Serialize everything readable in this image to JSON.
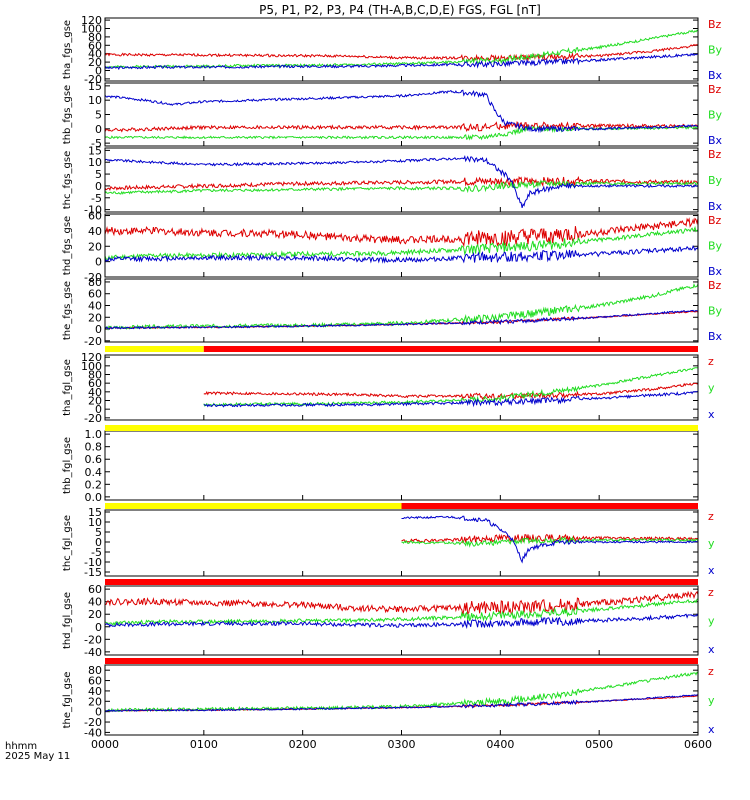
{
  "title": "P5, P1, P2, P3, P4 (TH-A,B,C,D,E) FGS, FGL [nT]",
  "time_axis": {
    "ticks": [
      "0000",
      "0100",
      "0200",
      "0300",
      "0400",
      "0500",
      "0600"
    ],
    "label_line1": "hhmm",
    "label_line2": "2025 May 11"
  },
  "colors": {
    "x": "#0000cc",
    "y": "#22dd22",
    "z": "#dd0000",
    "yellow": "#ffff00",
    "red": "#ff0000",
    "axis": "#000000"
  },
  "chart_data": [
    {
      "type": "line",
      "ylabel": "tha_fgs_gse",
      "hours": [
        0,
        6
      ],
      "yticks": [
        "120",
        "100",
        "80",
        "60",
        "40",
        "20",
        "0",
        "-20"
      ],
      "ylim": [
        -25,
        125
      ],
      "legend": [
        "Bz",
        "By",
        "Bx"
      ],
      "series": [
        {
          "name": "Bz",
          "color": "z",
          "times": [
            0,
            0.5,
            1,
            1.5,
            2,
            2.5,
            3,
            3.5,
            4,
            4.5,
            5,
            5.5,
            6
          ],
          "values": [
            38,
            37,
            37,
            36,
            35,
            34,
            30,
            30,
            30,
            32,
            35,
            45,
            60
          ],
          "noise": 3,
          "seed": 1
        },
        {
          "name": "By",
          "color": "y",
          "times": [
            0,
            0.5,
            1,
            1.5,
            2,
            2.5,
            3,
            3.5,
            4,
            4.5,
            5,
            5.5,
            6
          ],
          "values": [
            8,
            10,
            10,
            12,
            12,
            14,
            16,
            20,
            25,
            40,
            55,
            75,
            95
          ],
          "noise": 3,
          "seed": 2
        },
        {
          "name": "Bx",
          "color": "x",
          "times": [
            0,
            0.5,
            1,
            1.5,
            2,
            2.5,
            3,
            3.5,
            4,
            4.5,
            5,
            5.5,
            6
          ],
          "values": [
            6,
            8,
            8,
            9,
            10,
            10,
            12,
            14,
            16,
            20,
            25,
            32,
            38
          ],
          "noise": 3,
          "seed": 3
        }
      ]
    },
    {
      "type": "line",
      "ylabel": "thb_fgs_gse",
      "hours": [
        0,
        6
      ],
      "yticks": [
        "15",
        "10",
        "5",
        "0",
        "-5"
      ],
      "ylim": [
        -6,
        16
      ],
      "legend": [
        "Bz",
        "By",
        "Bx"
      ],
      "series": [
        {
          "name": "Bz",
          "color": "z",
          "times": [
            0,
            0.5,
            1,
            1.5,
            2,
            2.5,
            3,
            3.5,
            3.8,
            4,
            4.3,
            5,
            6
          ],
          "values": [
            -0.5,
            0,
            0.5,
            0.5,
            0.5,
            0.5,
            0.5,
            0.5,
            0.5,
            1,
            1,
            1,
            1
          ],
          "noise": 0.6,
          "seed": 4
        },
        {
          "name": "By",
          "color": "y",
          "times": [
            0,
            1,
            2,
            3,
            3.8,
            4,
            4.3,
            5,
            6
          ],
          "values": [
            -3,
            -3,
            -3,
            -3,
            -3,
            -2,
            0,
            0,
            0.5
          ],
          "noise": 0.4,
          "seed": 5
        },
        {
          "name": "Bx",
          "color": "x",
          "times": [
            0,
            0.4,
            0.7,
            1,
            2,
            3,
            3.5,
            3.85,
            3.95,
            4.05,
            4.3,
            5,
            6
          ],
          "values": [
            11.5,
            10,
            8.5,
            9.5,
            10.5,
            11.5,
            13,
            12,
            6,
            2,
            0,
            0,
            1
          ],
          "noise": 0.4,
          "seed": 6
        }
      ]
    },
    {
      "type": "line",
      "ylabel": "thc_fgs_gse",
      "hours": [
        0,
        6
      ],
      "yticks": [
        "15",
        "10",
        "5",
        "0",
        "-5",
        "-10"
      ],
      "ylim": [
        -11,
        16
      ],
      "legend": [
        "Bz",
        "By",
        "Bx"
      ],
      "series": [
        {
          "name": "Bz",
          "color": "z",
          "times": [
            0,
            1,
            2,
            3,
            3.8,
            4,
            4.5,
            5,
            6
          ],
          "values": [
            -1,
            0,
            1,
            1.5,
            2,
            2,
            2,
            2,
            1.5
          ],
          "noise": 0.8,
          "seed": 7
        },
        {
          "name": "By",
          "color": "y",
          "times": [
            0,
            1,
            2,
            3,
            3.8,
            4,
            4.5,
            5,
            6
          ],
          "values": [
            -3,
            -2,
            -1.5,
            -1,
            -1,
            0,
            1,
            1,
            1
          ],
          "noise": 0.6,
          "seed": 8
        },
        {
          "name": "Bx",
          "color": "x",
          "times": [
            0,
            0.5,
            1,
            2,
            3,
            3.5,
            3.85,
            4.1,
            4.22,
            4.3,
            4.6,
            5,
            6
          ],
          "values": [
            11,
            10,
            9,
            9.5,
            10.5,
            11.5,
            11,
            3,
            -9,
            -3,
            0,
            0,
            0
          ],
          "noise": 0.5,
          "seed": 9
        }
      ]
    },
    {
      "type": "line",
      "ylabel": "thd_fgs_gse",
      "hours": [
        0,
        6
      ],
      "yticks": [
        "60",
        "40",
        "20",
        "0",
        "-20"
      ],
      "ylim": [
        -20,
        62
      ],
      "legend": [
        "Bz",
        "By",
        "Bx"
      ],
      "series": [
        {
          "name": "Bz",
          "color": "z",
          "times": [
            0,
            0.5,
            1,
            1.5,
            2,
            2.5,
            3,
            3.5,
            4,
            4.5,
            5,
            5.5,
            6
          ],
          "values": [
            40,
            40,
            38,
            37,
            35,
            30,
            28,
            30,
            30,
            33,
            38,
            45,
            52
          ],
          "noise": 5,
          "seed": 10
        },
        {
          "name": "By",
          "color": "y",
          "times": [
            0,
            0.5,
            1,
            1.5,
            2,
            2.5,
            3,
            3.5,
            4,
            4.5,
            5,
            5.5,
            6
          ],
          "values": [
            5,
            8,
            8,
            9,
            10,
            10,
            12,
            15,
            18,
            22,
            28,
            35,
            42
          ],
          "noise": 3,
          "seed": 11
        },
        {
          "name": "Bx",
          "color": "x",
          "times": [
            0,
            0.5,
            1,
            1.5,
            2,
            2.5,
            3,
            3.5,
            4,
            4.5,
            5,
            5.5,
            6
          ],
          "values": [
            3,
            4,
            5,
            5,
            5,
            3,
            2,
            4,
            6,
            8,
            10,
            14,
            18
          ],
          "noise": 3,
          "seed": 12
        }
      ]
    },
    {
      "type": "line",
      "ylabel": "the_fgs_gse",
      "hours": [
        0,
        6
      ],
      "yticks": [
        "80",
        "60",
        "40",
        "20",
        "0",
        "-20"
      ],
      "ylim": [
        -22,
        85
      ],
      "legend": [
        "Bz",
        "By",
        "Bx"
      ],
      "series": [
        {
          "name": "Bz",
          "color": "z",
          "times": [
            0,
            1,
            2,
            3,
            4,
            5,
            6
          ],
          "values": [
            2,
            3,
            5,
            8,
            12,
            20,
            30
          ],
          "noise": 1,
          "seed": 13
        },
        {
          "name": "By",
          "color": "y",
          "times": [
            0,
            0.5,
            1,
            1.5,
            2,
            2.5,
            3,
            3.5,
            4,
            4.5,
            5,
            5.5,
            6
          ],
          "values": [
            2,
            4,
            5,
            6,
            6,
            8,
            10,
            15,
            20,
            30,
            40,
            55,
            75
          ],
          "noise": 3,
          "seed": 14
        },
        {
          "name": "Bx",
          "color": "x",
          "times": [
            0,
            1,
            2,
            3,
            4,
            5,
            6
          ],
          "values": [
            2,
            3,
            5,
            8,
            12,
            20,
            32
          ],
          "noise": 1.5,
          "seed": 15
        }
      ]
    },
    {
      "type": "line",
      "ylabel": "tha_fgl_gse",
      "hours": [
        1,
        6
      ],
      "yticks": [
        "120",
        "100",
        "80",
        "60",
        "40",
        "20",
        "0",
        "-20"
      ],
      "ylim": [
        -25,
        125
      ],
      "legend": [
        "z",
        "y",
        "x"
      ],
      "series": [
        {
          "name": "z",
          "color": "z",
          "times": [
            1,
            1.5,
            2,
            2.5,
            3,
            3.5,
            4,
            4.5,
            5,
            5.5,
            6
          ],
          "values": [
            37,
            36,
            35,
            34,
            30,
            30,
            30,
            32,
            35,
            45,
            60
          ],
          "noise": 3,
          "seed": 16
        },
        {
          "name": "y",
          "color": "y",
          "times": [
            1,
            1.5,
            2,
            2.5,
            3,
            3.5,
            4,
            4.5,
            5,
            5.5,
            6
          ],
          "values": [
            10,
            12,
            12,
            14,
            16,
            20,
            25,
            40,
            55,
            75,
            95
          ],
          "noise": 3,
          "seed": 17
        },
        {
          "name": "x",
          "color": "x",
          "times": [
            1,
            1.5,
            2,
            2.5,
            3,
            3.5,
            4,
            4.5,
            5,
            5.5,
            6
          ],
          "values": [
            8,
            9,
            10,
            10,
            12,
            14,
            16,
            20,
            25,
            32,
            38
          ],
          "noise": 3,
          "seed": 18
        }
      ]
    },
    {
      "type": "line",
      "ylabel": "thb_fgl_gse",
      "hours": [
        0,
        6
      ],
      "yticks": [
        "1.0",
        "0.8",
        "0.6",
        "0.4",
        "0.2",
        "0.0"
      ],
      "ylim": [
        -0.05,
        1.05
      ],
      "legend": [],
      "series": []
    },
    {
      "type": "line",
      "ylabel": "thc_fgl_gse",
      "hours": [
        3,
        6
      ],
      "yticks": [
        "15",
        "10",
        "5",
        "0",
        "-5",
        "-10",
        "-15"
      ],
      "ylim": [
        -17,
        16
      ],
      "legend": [
        "z",
        "y",
        "x"
      ],
      "series": [
        {
          "name": "z",
          "color": "z",
          "times": [
            3,
            3.5,
            3.8,
            4,
            4.5,
            5,
            6
          ],
          "values": [
            0.5,
            1,
            1.5,
            2,
            2,
            2,
            1.5
          ],
          "noise": 0.8,
          "seed": 19
        },
        {
          "name": "y",
          "color": "y",
          "times": [
            3,
            3.5,
            3.8,
            4,
            4.5,
            5,
            6
          ],
          "values": [
            0,
            -0.5,
            -1,
            0,
            1,
            1,
            1
          ],
          "noise": 0.6,
          "seed": 20
        },
        {
          "name": "x",
          "color": "x",
          "times": [
            3,
            3.5,
            3.85,
            4.1,
            4.22,
            4.3,
            4.6,
            5,
            6
          ],
          "values": [
            12,
            12.5,
            11,
            3,
            -9,
            -3,
            0,
            0,
            0
          ],
          "noise": 0.5,
          "seed": 21
        }
      ]
    },
    {
      "type": "line",
      "ylabel": "thd_fgl_gse",
      "hours": [
        0,
        6
      ],
      "yticks": [
        "60",
        "40",
        "20",
        "0",
        "-20",
        "-40"
      ],
      "ylim": [
        -45,
        65
      ],
      "legend": [
        "z",
        "y",
        "x"
      ],
      "series": [
        {
          "name": "z",
          "color": "z",
          "times": [
            0,
            0.5,
            1,
            1.5,
            2,
            2.5,
            3,
            3.5,
            4,
            4.5,
            5,
            5.5,
            6
          ],
          "values": [
            40,
            40,
            38,
            37,
            35,
            30,
            28,
            30,
            30,
            33,
            38,
            45,
            52
          ],
          "noise": 5,
          "seed": 22
        },
        {
          "name": "y",
          "color": "y",
          "times": [
            0,
            0.5,
            1,
            1.5,
            2,
            2.5,
            3,
            3.5,
            4,
            4.5,
            5,
            5.5,
            6
          ],
          "values": [
            5,
            8,
            8,
            9,
            10,
            10,
            12,
            15,
            18,
            22,
            28,
            35,
            42
          ],
          "noise": 3,
          "seed": 23
        },
        {
          "name": "x",
          "color": "x",
          "times": [
            0,
            0.5,
            1,
            1.5,
            2,
            2.5,
            3,
            3.5,
            4,
            4.5,
            5,
            5.5,
            6
          ],
          "values": [
            3,
            4,
            5,
            5,
            5,
            3,
            2,
            4,
            6,
            8,
            10,
            14,
            18
          ],
          "noise": 3,
          "seed": 24
        }
      ]
    },
    {
      "type": "line",
      "ylabel": "the_fgl_gse",
      "hours": [
        0,
        6
      ],
      "yticks": [
        "80",
        "60",
        "40",
        "20",
        "0",
        "-20",
        "-40"
      ],
      "ylim": [
        -45,
        90
      ],
      "legend": [
        "z",
        "y",
        "x"
      ],
      "series": [
        {
          "name": "z",
          "color": "z",
          "times": [
            0,
            1,
            2,
            3,
            4,
            5,
            6
          ],
          "values": [
            2,
            3,
            5,
            8,
            12,
            20,
            30
          ],
          "noise": 1,
          "seed": 25
        },
        {
          "name": "y",
          "color": "y",
          "times": [
            0,
            0.5,
            1,
            1.5,
            2,
            2.5,
            3,
            3.5,
            4,
            4.5,
            5,
            5.5,
            6
          ],
          "values": [
            3,
            4,
            5,
            6,
            7,
            8,
            10,
            15,
            20,
            30,
            45,
            60,
            75
          ],
          "noise": 3,
          "seed": 26
        },
        {
          "name": "x",
          "color": "x",
          "times": [
            0,
            1,
            2,
            3,
            4,
            5,
            6
          ],
          "values": [
            2,
            3,
            5,
            8,
            12,
            20,
            32
          ],
          "noise": 1.5,
          "seed": 27
        }
      ]
    }
  ],
  "status_bars": [
    {
      "segments": [
        {
          "from": 0,
          "to": 1,
          "color": "yellow"
        },
        {
          "from": 1,
          "to": 6,
          "color": "red"
        }
      ]
    },
    {
      "segments": [
        {
          "from": 0,
          "to": 6,
          "color": "yellow"
        }
      ]
    },
    {
      "segments": [
        {
          "from": 0,
          "to": 3,
          "color": "yellow"
        },
        {
          "from": 3,
          "to": 6,
          "color": "red"
        }
      ]
    },
    {
      "segments": [
        {
          "from": 0,
          "to": 6,
          "color": "red"
        }
      ]
    },
    {
      "segments": [
        {
          "from": 0,
          "to": 6,
          "color": "red"
        }
      ]
    }
  ]
}
